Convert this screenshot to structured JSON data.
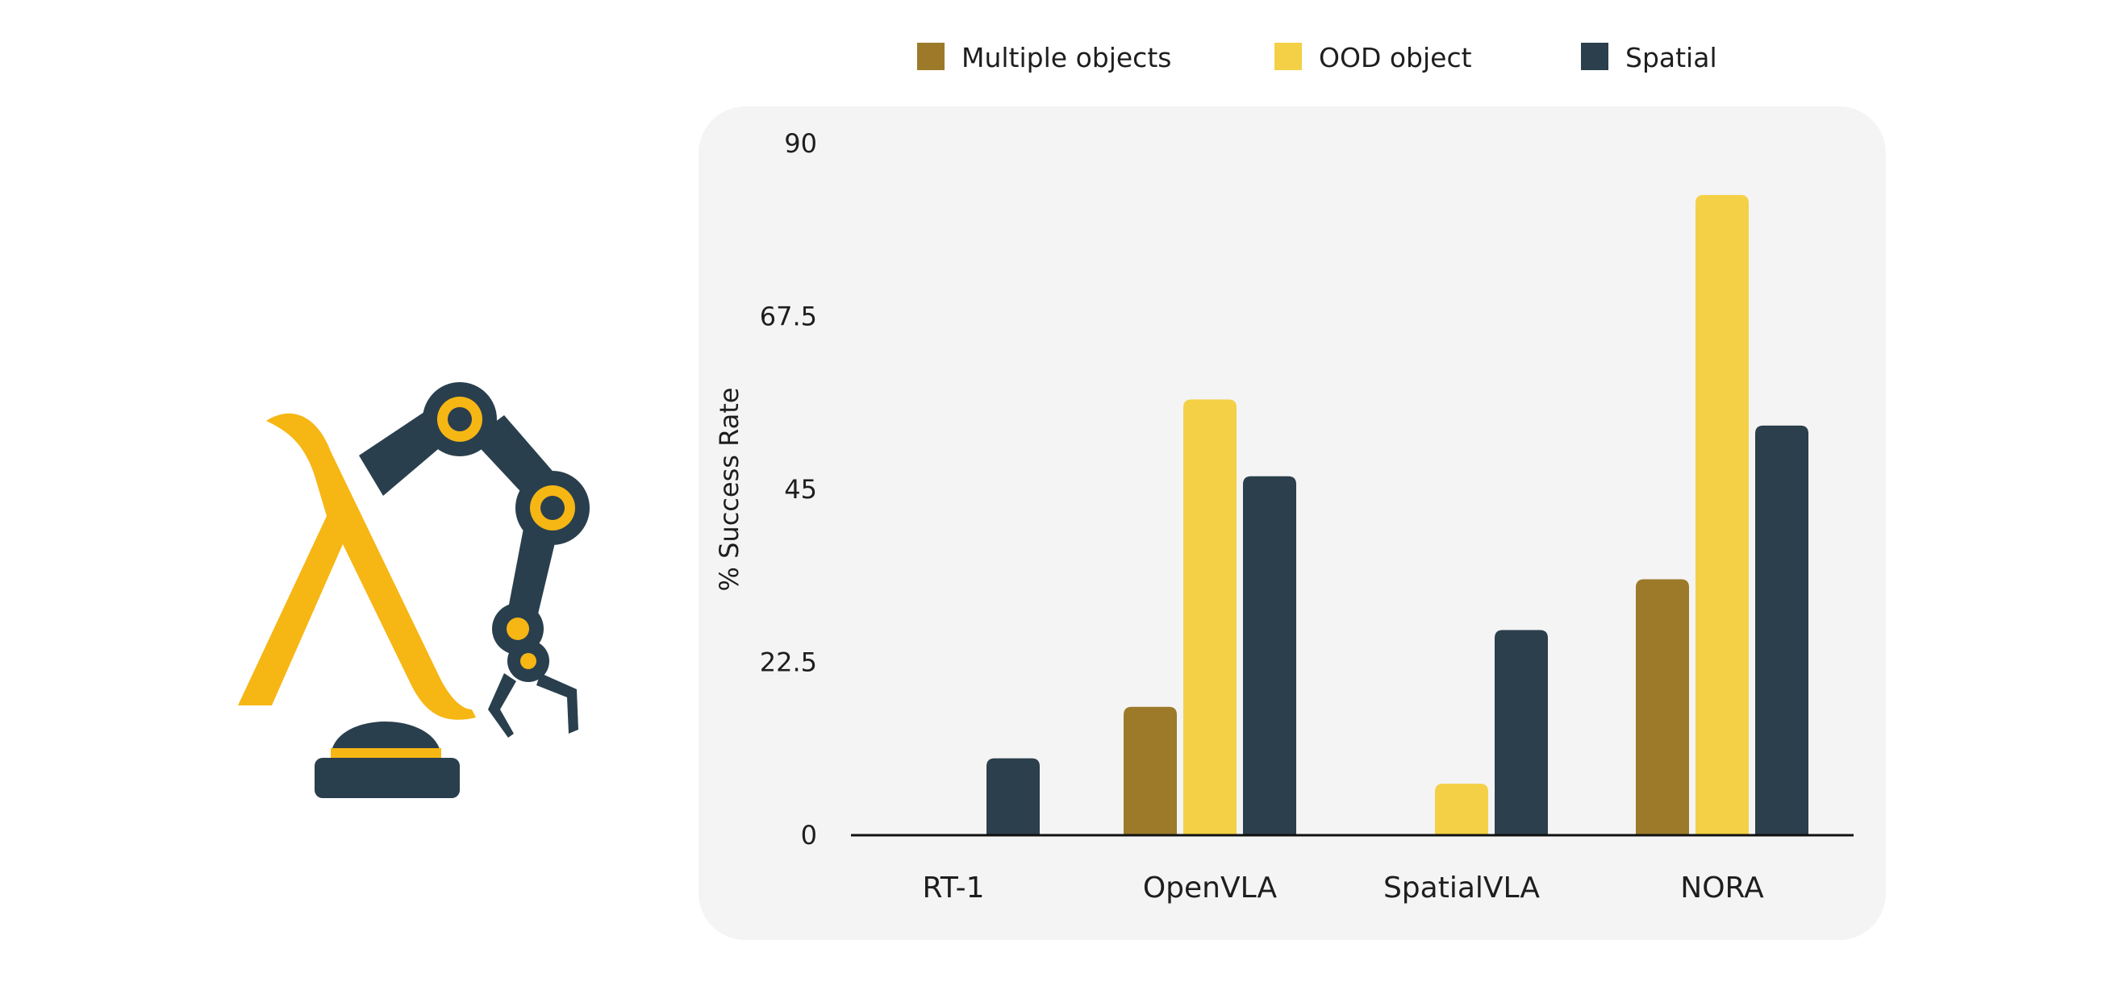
{
  "logo": {
    "icon": "lambda-robot-arm-icon",
    "colors": {
      "yellow": "#f6b614",
      "dark": "#2a3f4d"
    }
  },
  "chart_data": {
    "type": "bar",
    "title": "",
    "xlabel": "",
    "ylabel": "% Success Rate",
    "categories": [
      "RT-1",
      "OpenVLA",
      "SpatialVLA",
      "NORA"
    ],
    "series": [
      {
        "name": "Multiple objects",
        "color": "#9c7a29",
        "values": [
          0,
          16.7,
          0,
          33.3
        ]
      },
      {
        "name": "OOD object",
        "color": "#f4d046",
        "values": [
          0,
          56.7,
          6.7,
          83.3
        ]
      },
      {
        "name": "Spatial",
        "color": "#2b3f4c",
        "values": [
          10,
          46.7,
          26.7,
          53.3
        ]
      }
    ],
    "ylim": [
      0,
      90
    ],
    "yticks": [
      "0",
      "22.5",
      "45",
      "67.5",
      "90"
    ],
    "legend_position": "top",
    "grid": false
  }
}
